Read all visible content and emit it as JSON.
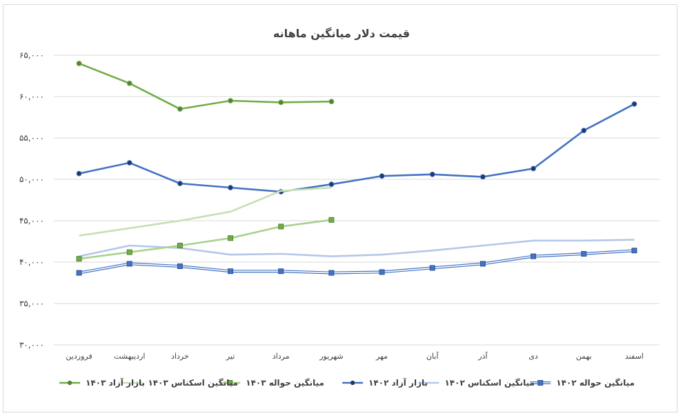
{
  "chart_data": {
    "type": "line",
    "title": "قیمت دلار میانگین ماهانه",
    "xlabel": "",
    "ylabel": "",
    "ylim": [
      30000,
      65000
    ],
    "yticks": [
      30000,
      35000,
      40000,
      45000,
      50000,
      55000,
      60000,
      65000
    ],
    "ytick_labels": [
      "۳۰,۰۰۰",
      "۳۵,۰۰۰",
      "۴۰,۰۰۰",
      "۴۵,۰۰۰",
      "۵۰,۰۰۰",
      "۵۵,۰۰۰",
      "۶۰,۰۰۰",
      "۶۵,۰۰۰"
    ],
    "grid": true,
    "legend_position": "bottom",
    "categories": [
      "فروردین",
      "اردیبهشت",
      "خرداد",
      "تیر",
      "مرداد",
      "شهریور",
      "مهر",
      "آبان",
      "آذر",
      "دی",
      "بهمن",
      "اسفند"
    ],
    "series": [
      {
        "name": "میانگین حواله ۱۴۰۲",
        "color": "#4472c4",
        "style": "double",
        "marker": "square",
        "values": [
          38700,
          39800,
          39500,
          38900,
          38900,
          38700,
          38800,
          39300,
          39800,
          40700,
          41000,
          41400
        ]
      },
      {
        "name": "میانگین اسکناس ۱۴۰۲",
        "color": "#b4c7e7",
        "style": "solid",
        "marker": "none",
        "values": [
          40700,
          42000,
          41700,
          40900,
          41000,
          40700,
          40900,
          41400,
          42000,
          42600,
          42600,
          42700
        ]
      },
      {
        "name": "بازار آزاد ۱۴۰۲",
        "color": "#4472c4",
        "style": "solid",
        "marker": "circle",
        "values": [
          50700,
          52000,
          49500,
          49000,
          48500,
          49400,
          50400,
          50600,
          50300,
          51300,
          55900,
          59100
        ]
      },
      {
        "name": "میانگین حواله ۱۴۰۳",
        "color": "#a9d18e",
        "style": "solid",
        "marker": "square",
        "values": [
          40400,
          41200,
          42000,
          42900,
          44300,
          45100,
          null,
          null,
          null,
          null,
          null,
          null
        ]
      },
      {
        "name": "میانگین اسکناس ۱۴۰۳",
        "color": "#c5e0b4",
        "style": "solid",
        "marker": "none",
        "values": [
          43200,
          44100,
          45000,
          46100,
          48600,
          49000,
          null,
          null,
          null,
          null,
          null,
          null
        ]
      },
      {
        "name": "بازار آزاد ۱۴۰۳",
        "color": "#70ad47",
        "style": "solid",
        "marker": "circle",
        "values": [
          64000,
          61600,
          58500,
          59500,
          59300,
          59400,
          null,
          null,
          null,
          null,
          null,
          null
        ]
      }
    ]
  }
}
